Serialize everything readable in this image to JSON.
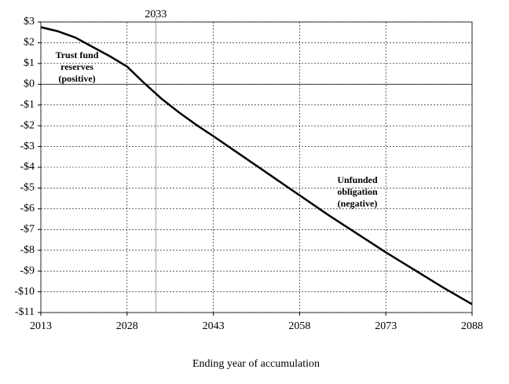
{
  "chart_data": {
    "type": "line",
    "x_label": "Ending year of accumulation",
    "x": [
      2013,
      2016,
      2019,
      2022,
      2025,
      2028,
      2031,
      2034,
      2037,
      2040,
      2043,
      2048,
      2053,
      2058,
      2063,
      2068,
      2073,
      2078,
      2083,
      2088
    ],
    "series": [
      {
        "color": "#000000",
        "values": [
          2.75,
          2.55,
          2.25,
          1.8,
          1.35,
          0.85,
          0.05,
          -0.7,
          -1.35,
          -1.95,
          -2.5,
          -3.45,
          -4.4,
          -5.35,
          -6.3,
          -7.2,
          -8.1,
          -8.95,
          -9.8,
          -10.6
        ]
      }
    ],
    "xlim": [
      2013,
      2088
    ],
    "xticks": [
      2013,
      2028,
      2043,
      2058,
      2073,
      2088
    ],
    "ylim": [
      -11,
      3
    ],
    "yticks": [
      {
        "value": 3,
        "label": "$3"
      },
      {
        "value": 2,
        "label": "$2"
      },
      {
        "value": 1,
        "label": "$1"
      },
      {
        "value": 0,
        "label": "$0"
      },
      {
        "value": -1,
        "label": "-$1"
      },
      {
        "value": -2,
        "label": "-$2"
      },
      {
        "value": -3,
        "label": "-$3"
      },
      {
        "value": -4,
        "label": "-$4"
      },
      {
        "value": -5,
        "label": "-$5"
      },
      {
        "value": -6,
        "label": "-$6"
      },
      {
        "value": -7,
        "label": "-$7"
      },
      {
        "value": -8,
        "label": "-$8"
      },
      {
        "value": -9,
        "label": "-$9"
      },
      {
        "value": -10,
        "label": "-$10"
      },
      {
        "value": -11,
        "label": "-$11"
      }
    ],
    "grid": true,
    "marker_year": 2033,
    "annotations": [
      [
        "Trust fund",
        "reserves",
        "(positive)"
      ],
      [
        "Unfunded",
        "obligation",
        "(negative)"
      ]
    ]
  }
}
